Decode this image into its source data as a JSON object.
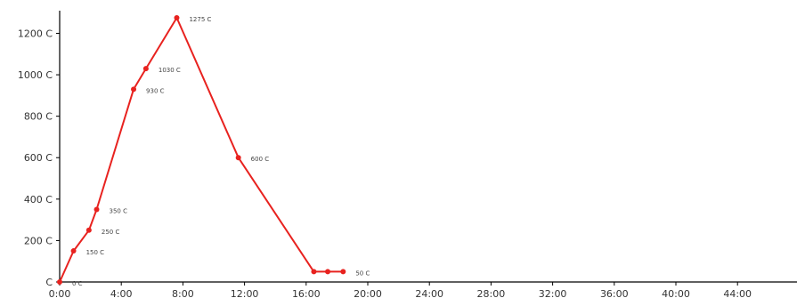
{
  "chart_data": {
    "type": "line",
    "title": "",
    "xlabel": "",
    "ylabel": "",
    "xlim": [
      0,
      48
    ],
    "ylim": [
      0,
      1275
    ],
    "grid": false,
    "legend": "none",
    "x_ticks": [
      {
        "value": 0,
        "label": "0:00"
      },
      {
        "value": 4,
        "label": "4:00"
      },
      {
        "value": 8,
        "label": "8:00"
      },
      {
        "value": 12,
        "label": "12:00"
      },
      {
        "value": 16,
        "label": "16:00"
      },
      {
        "value": 20,
        "label": "20:00"
      },
      {
        "value": 24,
        "label": "24:00"
      },
      {
        "value": 28,
        "label": "28:00"
      },
      {
        "value": 32,
        "label": "32:00"
      },
      {
        "value": 36,
        "label": "36:00"
      },
      {
        "value": 40,
        "label": "40:00"
      },
      {
        "value": 44,
        "label": "44:00"
      }
    ],
    "y_ticks": [
      {
        "value": 0,
        "label": "C"
      },
      {
        "value": 200,
        "label": "200 C"
      },
      {
        "value": 400,
        "label": "400 C"
      },
      {
        "value": 600,
        "label": "600 C"
      },
      {
        "value": 800,
        "label": "800 C"
      },
      {
        "value": 1000,
        "label": "1000 C"
      },
      {
        "value": 1200,
        "label": "1200 C"
      }
    ],
    "series": [
      {
        "color": "#e8221f",
        "points": [
          {
            "x": 0.0,
            "y": 0,
            "label": "0 C"
          },
          {
            "x": 0.9,
            "y": 150,
            "label": "150 C"
          },
          {
            "x": 1.9,
            "y": 250,
            "label": "250 C"
          },
          {
            "x": 2.4,
            "y": 350,
            "label": "350 C"
          },
          {
            "x": 4.8,
            "y": 930,
            "label": "930 C"
          },
          {
            "x": 5.6,
            "y": 1030,
            "label": "1030 C"
          },
          {
            "x": 7.6,
            "y": 1275,
            "label": "1275 C"
          },
          {
            "x": 11.6,
            "y": 600,
            "label": "600 C"
          },
          {
            "x": 16.5,
            "y": 50,
            "label": ""
          },
          {
            "x": 17.4,
            "y": 50,
            "label": ""
          },
          {
            "x": 18.4,
            "y": 50,
            "label": "50 C"
          }
        ]
      }
    ]
  }
}
